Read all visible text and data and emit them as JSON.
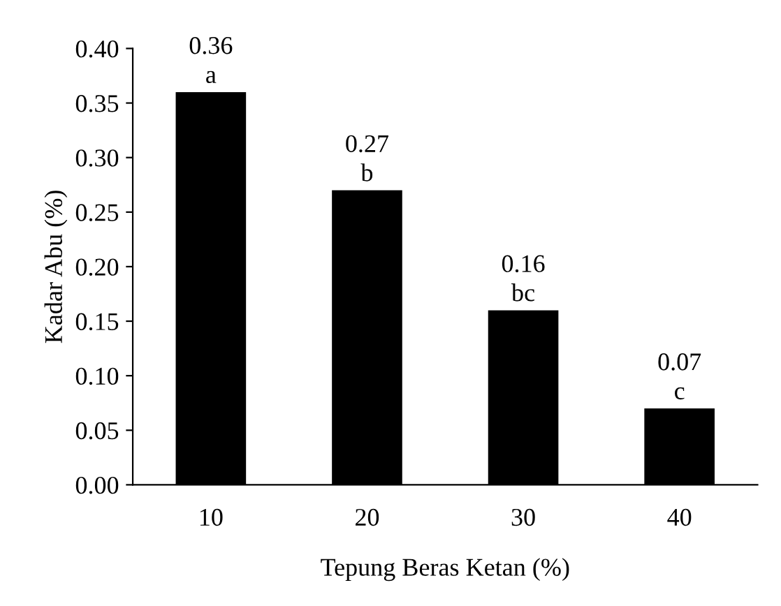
{
  "chart_data": {
    "type": "bar",
    "xlabel": "Tepung Beras Ketan (%)",
    "ylabel": "Kadar Abu (%)",
    "categories": [
      "10",
      "20",
      "30",
      "40"
    ],
    "values": [
      0.36,
      0.27,
      0.16,
      0.07
    ],
    "color": "#000000",
    "ylim": [
      0,
      0.4
    ],
    "yticks": [
      {
        "value": 0,
        "label": "0.00"
      },
      {
        "value": 0.05,
        "label": "0.05"
      },
      {
        "value": 0.1,
        "label": "0.10"
      },
      {
        "value": 0.15,
        "label": "0.15"
      },
      {
        "value": 0.2,
        "label": "0.20"
      },
      {
        "value": 0.25,
        "label": "0.25"
      },
      {
        "value": 0.3,
        "label": "0.30"
      },
      {
        "value": 0.35,
        "label": "0.35"
      },
      {
        "value": 0.4,
        "label": "0.40"
      }
    ],
    "data_labels": true,
    "grid": false,
    "annotations": [
      {
        "text": "a",
        "x": "10",
        "y": 0.36
      },
      {
        "text": "b",
        "x": "20",
        "y": 0.27
      },
      {
        "text": "bc",
        "x": "30",
        "y": 0.16
      },
      {
        "text": "c",
        "x": "40",
        "y": 0.07
      }
    ]
  }
}
